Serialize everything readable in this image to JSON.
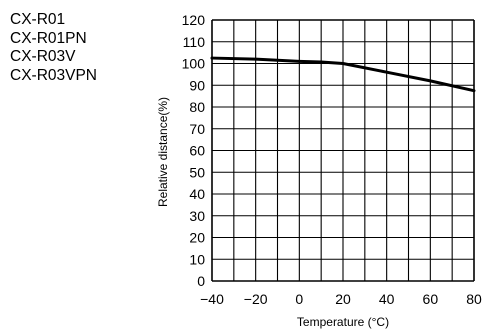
{
  "models": [
    "CX-R01",
    "CX-R01PN",
    "CX-R03V",
    "CX-R03VPN"
  ],
  "chart_data": {
    "type": "line",
    "xlabel": "Temperature (°C)",
    "ylabel": "Relative distance(%)",
    "xlim": [
      -40,
      80
    ],
    "ylim": [
      0,
      120
    ],
    "x_ticks": [
      "-40",
      "-20",
      "0",
      "20",
      "40",
      "60",
      "80"
    ],
    "y_ticks": [
      "0",
      "10",
      "20",
      "30",
      "40",
      "50",
      "60",
      "70",
      "80",
      "90",
      "100",
      "110",
      "120"
    ],
    "grid": true,
    "series": [
      {
        "x": [
          -40,
          -20,
          0,
          10,
          20,
          40,
          60,
          80
        ],
        "values": [
          102.5,
          102,
          101,
          100.7,
          100,
          96,
          92,
          87.5
        ]
      }
    ]
  }
}
